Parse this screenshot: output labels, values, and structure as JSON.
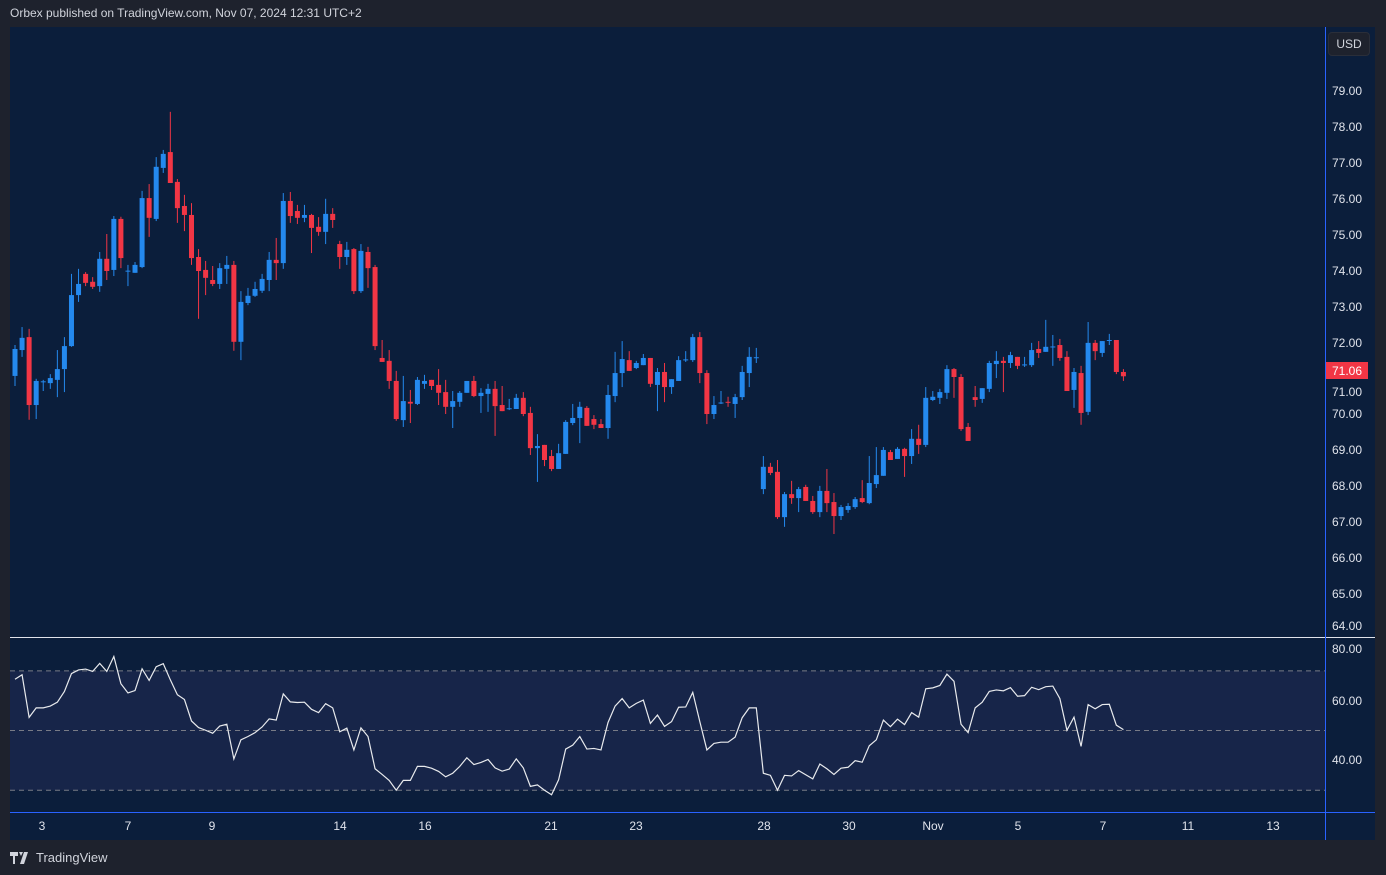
{
  "header": {
    "text": "Orbex published on TradingView.com, Nov 07, 2024 12:31 UTC+2"
  },
  "currency": "USD",
  "last_price": "71.06",
  "footer": {
    "logo_text": "TradingView"
  },
  "colors": {
    "up": "#2489ee",
    "down": "#f23645",
    "background": "#0b1e3b",
    "axis_line": "#2962ff",
    "rsi_band": "#172549",
    "rsi_line": "#e8eaed"
  },
  "chart_data": {
    "type": "candlestick",
    "price_axis": {
      "ticks": [
        "79.00",
        "78.00",
        "77.00",
        "76.00",
        "75.00",
        "74.00",
        "73.00",
        "72.00",
        "71.00",
        "70.00",
        "69.00",
        "68.00",
        "67.00",
        "66.00",
        "65.00",
        "64.00"
      ],
      "range": [
        64,
        79
      ]
    },
    "rsi_axis": {
      "ticks": [
        "80.00",
        "60.00",
        "40.00"
      ],
      "bands": [
        70,
        50,
        30
      ]
    },
    "x_ticks": [
      "3",
      "7",
      "9",
      "14",
      "16",
      "21",
      "23",
      "28",
      "30",
      "Nov",
      "5",
      "7",
      "11",
      "13"
    ],
    "ohlc": [
      [
        71.07,
        71.93,
        70.79,
        71.82
      ],
      [
        71.79,
        72.43,
        71.6,
        72.13
      ],
      [
        72.15,
        72.38,
        69.85,
        70.26
      ],
      [
        70.26,
        70.99,
        69.87,
        70.93
      ],
      [
        70.9,
        70.96,
        70.65,
        70.92
      ],
      [
        70.87,
        71.12,
        70.71,
        71.01
      ],
      [
        70.96,
        71.79,
        70.48,
        71.26
      ],
      [
        71.26,
        72.15,
        70.62,
        71.9
      ],
      [
        71.9,
        73.91,
        71.88,
        73.32
      ],
      [
        73.32,
        74.05,
        73.13,
        73.63
      ],
      [
        73.91,
        73.96,
        73.57,
        73.66
      ],
      [
        73.69,
        73.82,
        73.49,
        73.55
      ],
      [
        73.57,
        74.52,
        73.41,
        74.33
      ],
      [
        74.33,
        75.02,
        73.74,
        73.99
      ],
      [
        74.02,
        75.52,
        73.85,
        75.44
      ],
      [
        75.44,
        75.5,
        74.07,
        74.35
      ],
      [
        73.99,
        74.16,
        73.57,
        74.0
      ],
      [
        73.94,
        74.24,
        73.94,
        74.16
      ],
      [
        74.1,
        76.22,
        74.07,
        76.02
      ],
      [
        76.02,
        76.41,
        74.94,
        75.47
      ],
      [
        75.44,
        77.16,
        75.38,
        76.89
      ],
      [
        76.86,
        77.36,
        76.72,
        77.25
      ],
      [
        77.3,
        78.42,
        76.44,
        76.44
      ],
      [
        76.47,
        76.55,
        75.33,
        75.74
      ],
      [
        75.8,
        76.11,
        75.1,
        75.55
      ],
      [
        75.55,
        75.88,
        74.16,
        74.35
      ],
      [
        74.38,
        74.6,
        72.66,
        73.99
      ],
      [
        74.02,
        74.27,
        73.32,
        73.8
      ],
      [
        73.74,
        74.13,
        73.57,
        73.63
      ],
      [
        73.63,
        74.21,
        73.49,
        74.07
      ],
      [
        74.05,
        74.41,
        73.63,
        74.16
      ],
      [
        74.16,
        74.27,
        71.77,
        72.02
      ],
      [
        72.02,
        73.43,
        71.51,
        73.13
      ],
      [
        73.1,
        73.52,
        73.04,
        73.3
      ],
      [
        73.3,
        73.69,
        73.27,
        73.49
      ],
      [
        73.44,
        73.91,
        73.38,
        73.77
      ],
      [
        73.74,
        74.52,
        73.43,
        74.3
      ],
      [
        74.3,
        74.91,
        73.74,
        74.21
      ],
      [
        74.21,
        76.16,
        74.05,
        75.94
      ],
      [
        75.94,
        76.19,
        75.33,
        75.52
      ],
      [
        75.66,
        75.83,
        75.3,
        75.47
      ],
      [
        75.47,
        75.83,
        75.35,
        75.55
      ],
      [
        75.55,
        75.58,
        74.49,
        75.19
      ],
      [
        75.22,
        75.49,
        74.97,
        75.08
      ],
      [
        75.08,
        76.0,
        74.74,
        75.58
      ],
      [
        75.58,
        75.74,
        75.19,
        75.41
      ],
      [
        74.74,
        74.83,
        74.05,
        74.38
      ],
      [
        74.38,
        74.8,
        74.16,
        74.58
      ],
      [
        74.6,
        74.63,
        73.35,
        73.43
      ],
      [
        73.43,
        74.74,
        73.38,
        74.55
      ],
      [
        74.52,
        74.66,
        73.52,
        74.07
      ],
      [
        74.1,
        74.16,
        71.79,
        71.9
      ],
      [
        71.57,
        72.07,
        71.46,
        71.46
      ],
      [
        71.49,
        71.79,
        70.71,
        70.93
      ],
      [
        70.93,
        71.21,
        69.82,
        69.87
      ],
      [
        69.84,
        71.07,
        69.65,
        70.37
      ],
      [
        70.35,
        70.68,
        69.76,
        70.3
      ],
      [
        70.29,
        71.04,
        70.26,
        70.96
      ],
      [
        70.85,
        71.1,
        70.71,
        70.93
      ],
      [
        70.96,
        70.96,
        70.68,
        70.79
      ],
      [
        70.82,
        71.26,
        70.26,
        70.6
      ],
      [
        70.62,
        70.96,
        70.01,
        70.21
      ],
      [
        70.21,
        70.65,
        69.62,
        70.37
      ],
      [
        70.35,
        70.65,
        70.21,
        70.6
      ],
      [
        70.6,
        70.93,
        70.6,
        70.93
      ],
      [
        70.93,
        71.07,
        70.48,
        70.51
      ],
      [
        70.51,
        70.73,
        70.04,
        70.6
      ],
      [
        70.57,
        70.85,
        70.07,
        70.71
      ],
      [
        70.71,
        70.93,
        69.4,
        70.23
      ],
      [
        70.26,
        70.79,
        70.09,
        70.09
      ],
      [
        70.15,
        70.43,
        70.12,
        70.17
      ],
      [
        70.15,
        70.57,
        70.15,
        70.46
      ],
      [
        70.46,
        70.62,
        69.95,
        70.01
      ],
      [
        70.04,
        70.21,
        68.87,
        69.06
      ],
      [
        69.06,
        69.45,
        68.12,
        69.12
      ],
      [
        69.15,
        69.15,
        68.56,
        68.73
      ],
      [
        68.84,
        69.01,
        68.42,
        68.48
      ],
      [
        68.48,
        69.18,
        68.48,
        68.92
      ],
      [
        68.9,
        69.84,
        68.9,
        69.79
      ],
      [
        69.76,
        70.29,
        69.7,
        69.9
      ],
      [
        69.9,
        70.35,
        69.2,
        70.21
      ],
      [
        70.18,
        70.23,
        69.68,
        69.68
      ],
      [
        69.87,
        69.98,
        69.59,
        69.71
      ],
      [
        69.73,
        69.87,
        69.62,
        69.62
      ],
      [
        69.62,
        70.82,
        69.32,
        70.54
      ],
      [
        70.51,
        71.74,
        70.34,
        71.15
      ],
      [
        71.15,
        72.04,
        70.76,
        71.54
      ],
      [
        71.51,
        71.76,
        71.21,
        71.21
      ],
      [
        71.29,
        71.49,
        71.26,
        71.43
      ],
      [
        71.37,
        71.68,
        71.37,
        71.57
      ],
      [
        71.57,
        71.57,
        70.76,
        70.85
      ],
      [
        70.82,
        71.29,
        70.09,
        71.18
      ],
      [
        71.18,
        71.43,
        70.34,
        70.76
      ],
      [
        70.76,
        70.98,
        70.57,
        70.98
      ],
      [
        70.93,
        71.62,
        70.93,
        71.51
      ],
      [
        71.51,
        71.76,
        71.46,
        71.53
      ],
      [
        71.51,
        72.24,
        71.46,
        72.15
      ],
      [
        72.15,
        72.29,
        70.87,
        71.15
      ],
      [
        71.15,
        71.23,
        69.73,
        70.01
      ],
      [
        70.01,
        70.51,
        69.87,
        70.26
      ],
      [
        70.31,
        70.65,
        70.29,
        70.33
      ],
      [
        70.35,
        70.49,
        70.21,
        70.33
      ],
      [
        70.29,
        70.57,
        69.9,
        70.48
      ],
      [
        70.48,
        71.35,
        70.4,
        71.18
      ],
      [
        71.15,
        71.87,
        70.76,
        71.6
      ],
      [
        71.57,
        71.85,
        71.43,
        71.59
      ],
      [
        67.92,
        68.84,
        67.78,
        68.54
      ],
      [
        68.54,
        68.65,
        68.31,
        68.37
      ],
      [
        68.4,
        68.73,
        67.09,
        67.14
      ],
      [
        67.14,
        67.84,
        66.87,
        67.78
      ],
      [
        67.78,
        68.15,
        67.51,
        67.67
      ],
      [
        67.67,
        67.98,
        67.28,
        67.92
      ],
      [
        67.98,
        68.04,
        67.59,
        67.59
      ],
      [
        67.59,
        67.73,
        67.23,
        67.28
      ],
      [
        67.28,
        68.01,
        67.14,
        67.87
      ],
      [
        67.87,
        68.48,
        67.28,
        67.53
      ],
      [
        67.56,
        67.81,
        66.67,
        67.17
      ],
      [
        67.17,
        67.48,
        67.06,
        67.42
      ],
      [
        67.34,
        67.53,
        67.26,
        67.45
      ],
      [
        67.42,
        67.7,
        67.37,
        67.64
      ],
      [
        67.67,
        68.17,
        67.53,
        67.56
      ],
      [
        67.53,
        68.84,
        67.5,
        68.09
      ],
      [
        68.06,
        69.09,
        67.95,
        68.31
      ],
      [
        68.29,
        69.09,
        68.29,
        69.01
      ],
      [
        68.95,
        69.01,
        68.73,
        68.73
      ],
      [
        68.76,
        69.09,
        68.76,
        69.04
      ],
      [
        69.04,
        69.07,
        68.26,
        68.84
      ],
      [
        68.84,
        69.59,
        68.62,
        69.32
      ],
      [
        69.32,
        69.71,
        68.9,
        69.15
      ],
      [
        69.15,
        70.76,
        69.09,
        70.46
      ],
      [
        70.4,
        70.65,
        70.37,
        70.49
      ],
      [
        70.46,
        70.71,
        70.29,
        70.62
      ],
      [
        70.6,
        71.37,
        70.43,
        71.26
      ],
      [
        71.26,
        71.29,
        70.46,
        71.04
      ],
      [
        71.04,
        71.12,
        69.54,
        69.59
      ],
      [
        69.65,
        69.76,
        69.26,
        69.26
      ],
      [
        70.48,
        70.79,
        70.21,
        70.4
      ],
      [
        70.43,
        70.73,
        70.32,
        70.73
      ],
      [
        70.71,
        71.49,
        70.62,
        71.43
      ],
      [
        71.4,
        71.76,
        71.01,
        71.49
      ],
      [
        71.49,
        71.6,
        70.62,
        71.43
      ],
      [
        71.43,
        71.74,
        71.29,
        71.65
      ],
      [
        71.6,
        71.6,
        71.26,
        71.35
      ],
      [
        71.37,
        71.6,
        71.32,
        71.39
      ],
      [
        71.37,
        71.99,
        71.32,
        71.79
      ],
      [
        71.82,
        72.04,
        71.57,
        71.71
      ],
      [
        71.74,
        72.63,
        71.74,
        71.88
      ],
      [
        71.88,
        72.21,
        71.35,
        71.89
      ],
      [
        71.93,
        72.1,
        71.49,
        71.57
      ],
      [
        71.6,
        71.76,
        70.65,
        70.65
      ],
      [
        70.68,
        71.29,
        70.18,
        71.18
      ],
      [
        71.15,
        71.35,
        69.71,
        70.04
      ],
      [
        70.07,
        72.57,
        69.98,
        71.99
      ],
      [
        71.99,
        72.07,
        71.51,
        71.76
      ],
      [
        71.71,
        72.04,
        71.6,
        72.04
      ],
      [
        72.05,
        72.24,
        71.93,
        72.07
      ],
      [
        72.07,
        72.07,
        71.12,
        71.18
      ],
      [
        71.18,
        71.26,
        70.93,
        71.06
      ]
    ],
    "rsi": [
      67.2,
      68.7,
      54.4,
      57.6,
      57.6,
      58.2,
      59.5,
      63.1,
      69.1,
      70.3,
      70.6,
      69.8,
      72.5,
      69.8,
      74.8,
      65.7,
      62.6,
      63.4,
      70.7,
      66.8,
      71.4,
      72.4,
      67.0,
      62.0,
      60.4,
      53.2,
      51.0,
      50.1,
      49.1,
      51.5,
      52.1,
      40.5,
      46.9,
      48.0,
      49.3,
      51.2,
      53.9,
      53.5,
      62.3,
      59.6,
      59.4,
      59.5,
      57.1,
      56.0,
      59.0,
      57.6,
      49.6,
      50.8,
      43.5,
      50.9,
      48.0,
      37.2,
      35.3,
      33.3,
      30.0,
      33.3,
      33.3,
      38.0,
      38.0,
      37.4,
      36.3,
      34.5,
      35.7,
      38.0,
      40.9,
      38.6,
      39.3,
      40.3,
      37.5,
      36.4,
      37.1,
      40.5,
      37.5,
      31.3,
      31.8,
      30.0,
      28.5,
      33.5,
      43.8,
      45.1,
      48.0,
      43.8,
      44.0,
      43.5,
      52.7,
      58.2,
      60.7,
      57.6,
      59.1,
      60.2,
      52.4,
      55.2,
      51.4,
      53.0,
      57.8,
      57.9,
      62.8,
      53.0,
      43.5,
      45.7,
      46.1,
      46.1,
      47.8,
      54.3,
      57.6,
      57.6,
      35.7,
      35.0,
      30.0,
      35.0,
      34.8,
      36.6,
      35.2,
      33.8,
      38.8,
      37.2,
      35.3,
      37.4,
      37.7,
      39.9,
      39.4,
      44.9,
      46.9,
      53.5,
      51.3,
      53.8,
      52.0,
      56.0,
      54.5,
      64.0,
      64.3,
      65.1,
      68.9,
      66.5,
      52.1,
      49.3,
      57.6,
      59.5,
      63.1,
      63.6,
      63.3,
      64.4,
      61.5,
      61.7,
      64.5,
      63.7,
      64.7,
      64.9,
      60.7,
      50.1,
      54.5,
      44.7,
      58.7,
      57.3,
      58.7,
      58.8,
      51.8,
      50.3
    ]
  }
}
